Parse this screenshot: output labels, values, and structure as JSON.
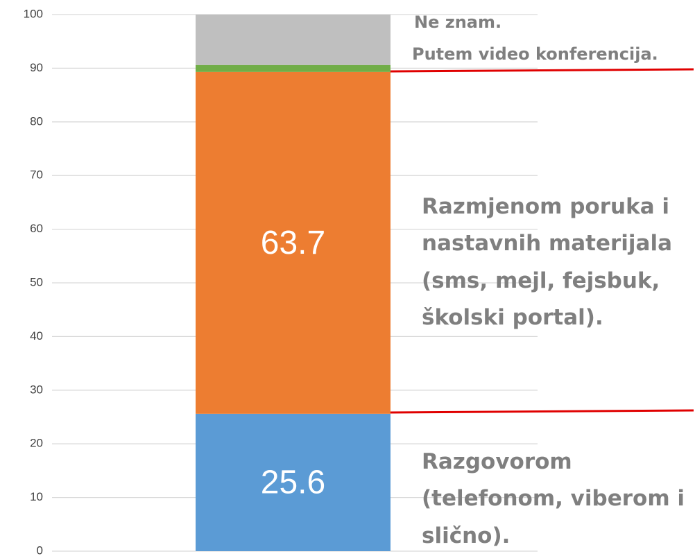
{
  "chart_data": {
    "type": "stacked_bar",
    "categories": [
      null
    ],
    "ylim": [
      0,
      100
    ],
    "yticks": [
      0,
      10,
      20,
      30,
      40,
      50,
      60,
      70,
      80,
      90,
      100
    ],
    "grid": true,
    "series": [
      {
        "name": "Razgovorom (telefonom, viberom i slično).",
        "color": "#5b9bd5",
        "values": [
          25.6
        ],
        "data_label": true
      },
      {
        "name": "Razmjenom poruka i nastavnih materijala (sms, mejl, fejsbuk, školski portal).",
        "color": "#ed7d31",
        "values": [
          63.7
        ],
        "data_label": true
      },
      {
        "name": "Putem video konferencija.",
        "color": "#70ad47",
        "values": [
          1.3
        ],
        "data_label": false
      },
      {
        "name": "Ne znam.",
        "color": "#bfbfbf",
        "values": [
          9.4
        ],
        "data_label": false
      }
    ]
  }
}
